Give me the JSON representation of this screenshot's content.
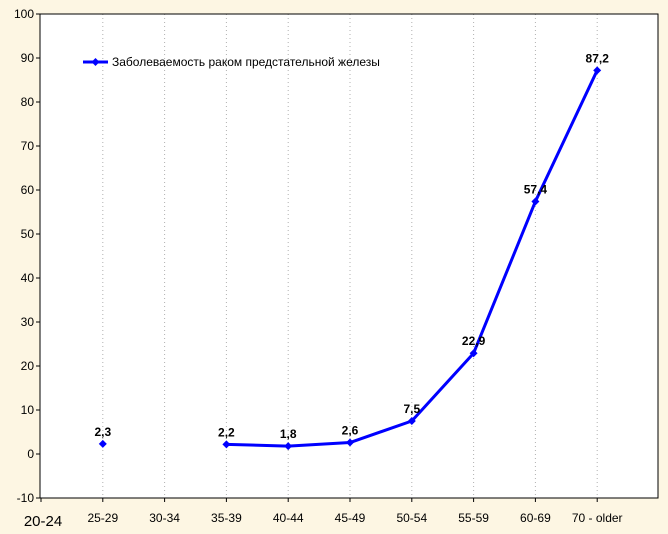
{
  "colors": {
    "background": "#fdf6e3",
    "plot_background": "#ffffff",
    "series": "#0000ff",
    "grid": "#b0b0b0",
    "axis": "#000000"
  },
  "chart_data": {
    "type": "line",
    "title": "",
    "xlabel": "",
    "ylabel": "",
    "categories": [
      "20-24",
      "25-29",
      "30-34",
      "35-39",
      "40-44",
      "45-49",
      "50-54",
      "55-59",
      "60-69",
      "70 - older"
    ],
    "ylim": [
      -10,
      100
    ],
    "yticks": [
      -10,
      0,
      10,
      20,
      30,
      40,
      50,
      60,
      70,
      80,
      90,
      100
    ],
    "grid": {
      "vertical": true,
      "horizontal": false,
      "style": "dotted"
    },
    "legend_position": "top-left",
    "series": [
      {
        "name": "Заболеваемость раком предстательной железы",
        "values": [
          null,
          2.3,
          null,
          2.2,
          1.8,
          2.6,
          7.5,
          22.9,
          57.4,
          87.2
        ],
        "labels": [
          "",
          "2,3",
          "",
          "2,2",
          "1,8",
          "2,6",
          "7,5",
          "22,9",
          "57,4",
          "87,2"
        ]
      }
    ]
  }
}
